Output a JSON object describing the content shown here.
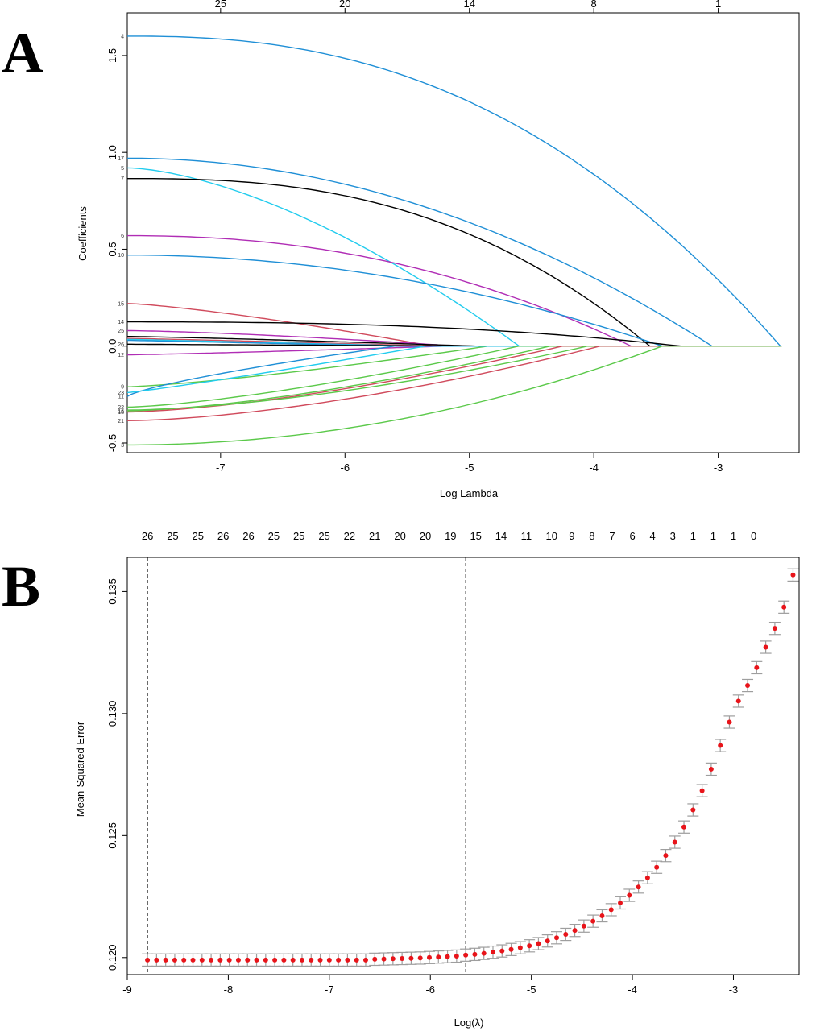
{
  "chart_data": [
    {
      "type": "line",
      "panel_label": "A",
      "xlabel": "Log Lambda",
      "ylabel": "Coefficients",
      "xlim": [
        -7.75,
        -2.35
      ],
      "ylim": [
        -0.55,
        1.72
      ],
      "x_ticks": [
        "-7",
        "-6",
        "-5",
        "-4",
        "-3"
      ],
      "y_ticks": [
        "-0.5",
        "0.0",
        "0.5",
        "1.0",
        "1.5"
      ],
      "top_axis": {
        "positions": [
          -7,
          -6,
          -5,
          -4,
          -3
        ],
        "labels": [
          "25",
          "20",
          "14",
          "8",
          "1"
        ]
      },
      "x_start": -7.75,
      "series": [
        {
          "name": "4",
          "color": "#1f8fd6",
          "start": 1.6,
          "end_x": -2.5,
          "curve": 2.4
        },
        {
          "name": "17",
          "color": "#1f8fd6",
          "start": 0.97,
          "end_x": -3.05,
          "curve": 2.0
        },
        {
          "name": "5",
          "color": "#22ccee",
          "start": 0.92,
          "end_x": -4.6,
          "curve": 1.6
        },
        {
          "name": "7",
          "color": "#000000",
          "start": 0.865,
          "end_x": -3.55,
          "curve": 2.6
        },
        {
          "name": "6",
          "color": "#b02db5",
          "start": 0.57,
          "end_x": -3.7,
          "curve": 2.2
        },
        {
          "name": "10",
          "color": "#1f8fd6",
          "start": 0.47,
          "end_x": -3.45,
          "curve": 2.0
        },
        {
          "name": "15",
          "color": "#d04a5c",
          "start": 0.22,
          "end_x": -5.3,
          "curve": 1.3
        },
        {
          "name": "14",
          "color": "#000000",
          "start": 0.125,
          "end_x": -3.3,
          "curve": 2.5
        },
        {
          "name": "25",
          "color": "#b02db5",
          "start": 0.08,
          "end_x": -5.1,
          "curve": 1.4
        },
        {
          "name": "",
          "color": "#000000",
          "start": 0.05,
          "end_x": -4.95,
          "curve": 1.2
        },
        {
          "name": "",
          "color": "#d04a5c",
          "start": 0.04,
          "end_x": -5.25,
          "curve": 1.1
        },
        {
          "name": "",
          "color": "#22ccee",
          "start": 0.035,
          "end_x": -5.4,
          "curve": 1.0
        },
        {
          "name": "",
          "color": "#1f8fd6",
          "start": 0.03,
          "end_x": -5.55,
          "curve": 1.0
        },
        {
          "name": "26",
          "color": "#000000",
          "start": 0.01,
          "end_x": -5.0,
          "curve": 1.0
        },
        {
          "name": "12",
          "color": "#b02db5",
          "start": -0.045,
          "end_x": -5.2,
          "curve": 1.2
        },
        {
          "name": "9",
          "color": "#5bc94a",
          "start": -0.21,
          "end_x": -4.85,
          "curve": 1.3
        },
        {
          "name": "11",
          "color": "#1f8fd6",
          "start": -0.26,
          "end_x": -5.6,
          "curve": 0.75
        },
        {
          "name": "23",
          "color": "#22ccee",
          "start": -0.24,
          "end_x": -5.35,
          "curve": 1.1
        },
        {
          "name": "22",
          "color": "#5bc94a",
          "start": -0.315,
          "end_x": -4.6,
          "curve": 1.4
        },
        {
          "name": "16",
          "color": "#5bc94a",
          "start": -0.335,
          "end_x": -4.35,
          "curve": 1.5
        },
        {
          "name": "18",
          "color": "#d04a5c",
          "start": -0.34,
          "end_x": -4.25,
          "curve": 1.5
        },
        {
          "name": "",
          "color": "#5bc94a",
          "start": -0.33,
          "end_x": -4.05,
          "curve": 1.6
        },
        {
          "name": "21",
          "color": "#d04a5c",
          "start": -0.385,
          "end_x": -3.95,
          "curve": 1.6
        },
        {
          "name": "3",
          "color": "#5bc94a",
          "start": -0.51,
          "end_x": -3.45,
          "curve": 2.0
        }
      ]
    },
    {
      "type": "scatter",
      "panel_label": "B",
      "xlabel": "Log(λ)",
      "ylabel": "Mean-Squared Error",
      "xlim": [
        -9.0,
        -2.35
      ],
      "ylim": [
        0.1193,
        0.1364
      ],
      "x_ticks": [
        "-9",
        "-8",
        "-7",
        "-6",
        "-5",
        "-4",
        "-3"
      ],
      "y_ticks": [
        "0.120",
        "0.125",
        "0.130",
        "0.135"
      ],
      "top_axis": {
        "positions": [
          -8.8,
          -8.55,
          -8.3,
          -8.05,
          -7.8,
          -7.55,
          -7.3,
          -7.05,
          -6.8,
          -6.55,
          -6.3,
          -6.05,
          -5.8,
          -5.55,
          -5.3,
          -5.05,
          -4.8,
          -4.6,
          -4.4,
          -4.2,
          -4.0,
          -3.8,
          -3.6,
          -3.4,
          -3.2,
          -3.0,
          -2.8,
          -2.6
        ],
        "labels": [
          "26",
          "25",
          "25",
          "26",
          "26",
          "25",
          "25",
          "25",
          "22",
          "21",
          "20",
          "20",
          "19",
          "15",
          "14",
          "11",
          "10",
          "9",
          "8",
          "7",
          "6",
          "4",
          "3",
          "1",
          "1",
          "1",
          "0",
          ""
        ]
      },
      "vlines": [
        -8.8,
        -5.65
      ],
      "error_halfwidth": 0.00025,
      "points": [
        [
          -8.8,
          0.1199
        ],
        [
          -8.71,
          0.1199
        ],
        [
          -8.62,
          0.1199
        ],
        [
          -8.53,
          0.1199
        ],
        [
          -8.44,
          0.1199
        ],
        [
          -8.35,
          0.1199
        ],
        [
          -8.26,
          0.1199
        ],
        [
          -8.17,
          0.1199
        ],
        [
          -8.08,
          0.1199
        ],
        [
          -7.99,
          0.1199
        ],
        [
          -7.9,
          0.1199
        ],
        [
          -7.81,
          0.1199
        ],
        [
          -7.72,
          0.1199
        ],
        [
          -7.63,
          0.1199
        ],
        [
          -7.54,
          0.1199
        ],
        [
          -7.45,
          0.1199
        ],
        [
          -7.36,
          0.1199
        ],
        [
          -7.27,
          0.1199
        ],
        [
          -7.18,
          0.1199
        ],
        [
          -7.09,
          0.1199
        ],
        [
          -7.0,
          0.1199
        ],
        [
          -6.91,
          0.1199
        ],
        [
          -6.82,
          0.1199
        ],
        [
          -6.73,
          0.1199
        ],
        [
          -6.64,
          0.1199
        ],
        [
          -6.55,
          0.11993
        ],
        [
          -6.46,
          0.11994
        ],
        [
          -6.37,
          0.11995
        ],
        [
          -6.28,
          0.11996
        ],
        [
          -6.19,
          0.11997
        ],
        [
          -6.1,
          0.11998
        ],
        [
          -6.01,
          0.12
        ],
        [
          -5.92,
          0.12002
        ],
        [
          -5.83,
          0.12004
        ],
        [
          -5.74,
          0.12006
        ],
        [
          -5.65,
          0.1201
        ],
        [
          -5.56,
          0.12013
        ],
        [
          -5.47,
          0.12017
        ],
        [
          -5.38,
          0.12022
        ],
        [
          -5.29,
          0.12027
        ],
        [
          -5.2,
          0.12033
        ],
        [
          -5.11,
          0.1204
        ],
        [
          -5.02,
          0.12048
        ],
        [
          -4.93,
          0.12057
        ],
        [
          -4.84,
          0.12068
        ],
        [
          -4.75,
          0.12081
        ],
        [
          -4.66,
          0.12095
        ],
        [
          -4.57,
          0.12111
        ],
        [
          -4.48,
          0.12129
        ],
        [
          -4.39,
          0.12149
        ],
        [
          -4.3,
          0.12171
        ],
        [
          -4.21,
          0.12196
        ],
        [
          -4.12,
          0.12224
        ],
        [
          -4.03,
          0.12255
        ],
        [
          -3.94,
          0.12289
        ],
        [
          -3.85,
          0.12327
        ],
        [
          -3.76,
          0.1237
        ],
        [
          -3.67,
          0.12418
        ],
        [
          -3.58,
          0.12473
        ],
        [
          -3.49,
          0.12535
        ],
        [
          -3.4,
          0.12605
        ],
        [
          -3.31,
          0.12684
        ],
        [
          -3.22,
          0.12772
        ],
        [
          -3.13,
          0.12869
        ],
        [
          -3.04,
          0.12965
        ],
        [
          -2.95,
          0.13051
        ],
        [
          -2.86,
          0.13115
        ],
        [
          -2.77,
          0.13188
        ],
        [
          -2.68,
          0.13272
        ],
        [
          -2.59,
          0.13349
        ],
        [
          -2.5,
          0.13436
        ],
        [
          -2.41,
          0.13568
        ]
      ]
    }
  ]
}
